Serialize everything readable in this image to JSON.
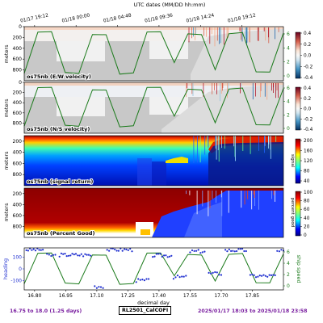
{
  "top_axis": {
    "title": "UTC dates (MM/DD hh:mm)",
    "ticks": [
      {
        "label": "01/17 19:12",
        "day": 16.8
      },
      {
        "label": "01/18 00:00",
        "day": 17.0
      },
      {
        "label": "01/18 04:48",
        "day": 17.2
      },
      {
        "label": "01/18 09:36",
        "day": 17.4
      },
      {
        "label": "01/18 14:24",
        "day": 17.6
      },
      {
        "label": "01/18 19:12",
        "day": 17.8
      }
    ]
  },
  "footer": {
    "left": "16.75 to 18.0 (1.25 days)",
    "middle": "RL2501_CalCOFI",
    "right": "2025/01/17 18:03 to 2025/01/18 23:58"
  },
  "colors": {
    "footer_text": "#7a1fa0",
    "speed_line": "#1a7a1a",
    "heading_points": "#1f2fd0"
  },
  "chart_data": [
    {
      "type": "heatmap",
      "panel_label": "os75nb (E/W velocity)",
      "ylabel": "meters",
      "yticks": [
        0,
        200,
        400,
        600,
        800
      ],
      "ylim": [
        1000,
        0
      ],
      "xlim": [
        16.75,
        18.0
      ],
      "colorbar": {
        "ticks": [
          "0.4",
          "0.2",
          "0.0",
          "-0.2",
          "-0.4"
        ],
        "range": [
          -0.4,
          0.4
        ],
        "cmap": "RdBu_r"
      },
      "right_axis_ticks": [
        "0",
        "2",
        "4",
        "6"
      ],
      "speed_trace_y": [
        0.1,
        0.9,
        0.9,
        0.1,
        0.1,
        0.9,
        0.9,
        0.1,
        0.1,
        0.9,
        0.9,
        0.3,
        0.9,
        0.9,
        0.2,
        0.9,
        0.9,
        0.1,
        0.1,
        0.9
      ]
    },
    {
      "type": "heatmap",
      "panel_label": "os75nb (N/S velocity)",
      "ylabel": "meters",
      "yticks": [
        0,
        200,
        400,
        600,
        800
      ],
      "ylim": [
        1000,
        0
      ],
      "xlim": [
        16.75,
        18.0
      ],
      "colorbar": {
        "ticks": [
          "0.4",
          "0.2",
          "0.0",
          "-0.2",
          "-0.4"
        ],
        "range": [
          -0.4,
          0.4
        ],
        "cmap": "RdBu_r"
      },
      "right_axis_ticks": [
        "0",
        "2",
        "4",
        "6"
      ]
    },
    {
      "type": "heatmap",
      "panel_label": "os75nb (signal return)",
      "ylabel": "meters",
      "yticks": [
        200,
        400,
        600,
        800
      ],
      "ylim": [
        1000,
        100
      ],
      "xlim": [
        16.75,
        18.0
      ],
      "colorbar": {
        "ticks": [
          "200",
          "160",
          "120",
          "80",
          "40"
        ],
        "range": [
          0,
          200
        ],
        "cmap": "jet",
        "label": "signal"
      }
    },
    {
      "type": "heatmap",
      "panel_label": "os75nb (Percent Good)",
      "ylabel": "meters",
      "yticks": [
        200,
        400,
        600,
        800
      ],
      "ylim": [
        1000,
        100
      ],
      "xlim": [
        16.75,
        18.0
      ],
      "colorbar": {
        "ticks": [
          "100",
          "80",
          "60",
          "40",
          "20",
          "0"
        ],
        "range": [
          0,
          100
        ],
        "cmap": "jet",
        "label": "percent good"
      }
    },
    {
      "type": "scatter",
      "ylabel": "heading",
      "yticks": [
        "100",
        "0",
        "-100"
      ],
      "ylim": [
        -180,
        180
      ],
      "xlabel": "decimal day",
      "xticks": [
        "16.80",
        "16.95",
        "17.10",
        "17.25",
        "17.40",
        "17.55",
        "17.70",
        "17.85"
      ],
      "xlim": [
        16.75,
        18.0
      ],
      "right_ylabel": "ship speed",
      "right_axis_ticks": [
        "0",
        "2",
        "4",
        "6"
      ]
    }
  ]
}
